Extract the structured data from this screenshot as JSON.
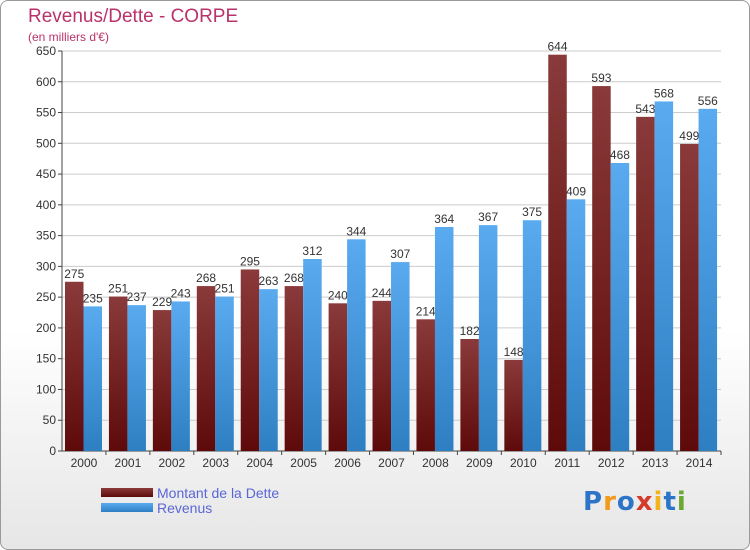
{
  "title": "Revenus/Dette - CORPE",
  "subtitle": "(en milliers d'€)",
  "logo_text": "Proxiti",
  "colors": {
    "title": "#b8336a",
    "dette_top": "#8a3a3a",
    "dette_bottom": "#5e0a0a",
    "revenus_top": "#5aaaf0",
    "revenus_bottom": "#2e7fc2",
    "legend_text": "#5a66d8",
    "grid": "#cccccc",
    "logo": [
      "#2b74c8",
      "#f29a1c",
      "#2b74c8",
      "#d63a2a",
      "#f2b31c",
      "#2b74c8",
      "#69a832"
    ]
  },
  "legend": [
    {
      "label": "Montant de la Dette",
      "series": "dette"
    },
    {
      "label": "Revenus",
      "series": "revenus"
    }
  ],
  "chart_data": {
    "type": "bar",
    "title": "Revenus/Dette - CORPE",
    "subtitle": "(en milliers d'€)",
    "categories": [
      "2000",
      "2001",
      "2002",
      "2003",
      "2004",
      "2005",
      "2006",
      "2007",
      "2008",
      "2009",
      "2010",
      "2011",
      "2012",
      "2013",
      "2014"
    ],
    "series": [
      {
        "name": "Montant de la Dette",
        "key": "dette",
        "values": [
          275,
          251,
          229,
          268,
          295,
          268,
          240,
          244,
          214,
          182,
          148,
          644,
          593,
          543,
          499
        ]
      },
      {
        "name": "Revenus",
        "key": "revenus",
        "values": [
          235,
          237,
          243,
          251,
          263,
          312,
          344,
          307,
          364,
          367,
          375,
          409,
          468,
          568,
          556
        ]
      }
    ],
    "ylim": [
      0,
      650
    ],
    "yticks": [
      0,
      50,
      100,
      150,
      200,
      250,
      300,
      350,
      400,
      450,
      500,
      550,
      600,
      650
    ],
    "grid": true,
    "legend_position": "bottom-left"
  }
}
